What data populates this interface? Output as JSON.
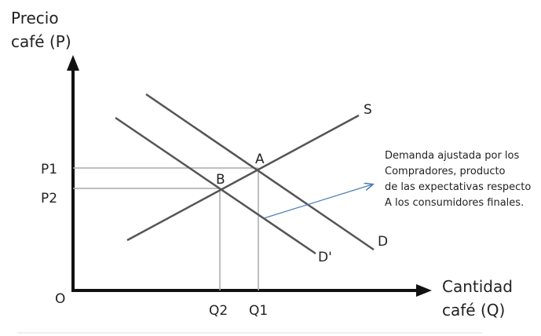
{
  "y_axis": {
    "title_line1": "Precio",
    "title_line2": "café (P)"
  },
  "x_axis": {
    "title_line1": "Cantidad",
    "title_line2": "café (Q)"
  },
  "origin_label": "O",
  "price_labels": {
    "p1": "P1",
    "p2": "P2"
  },
  "quantity_labels": {
    "q1": "Q1",
    "q2": "Q2"
  },
  "curve_labels": {
    "supply": "S",
    "demand": "D",
    "demand_shifted": "D'"
  },
  "point_labels": {
    "a": "A",
    "b": "B"
  },
  "annotation": {
    "lines": [
      "Demanda ajustada por los",
      "Compradores, producto",
      "de las expectativas respecto",
      "A los consumidores finales."
    ]
  },
  "colors": {
    "curve": "#555555",
    "axis": "#111111",
    "guide": "#aaaaaa",
    "arrow": "#4a7db3"
  }
}
